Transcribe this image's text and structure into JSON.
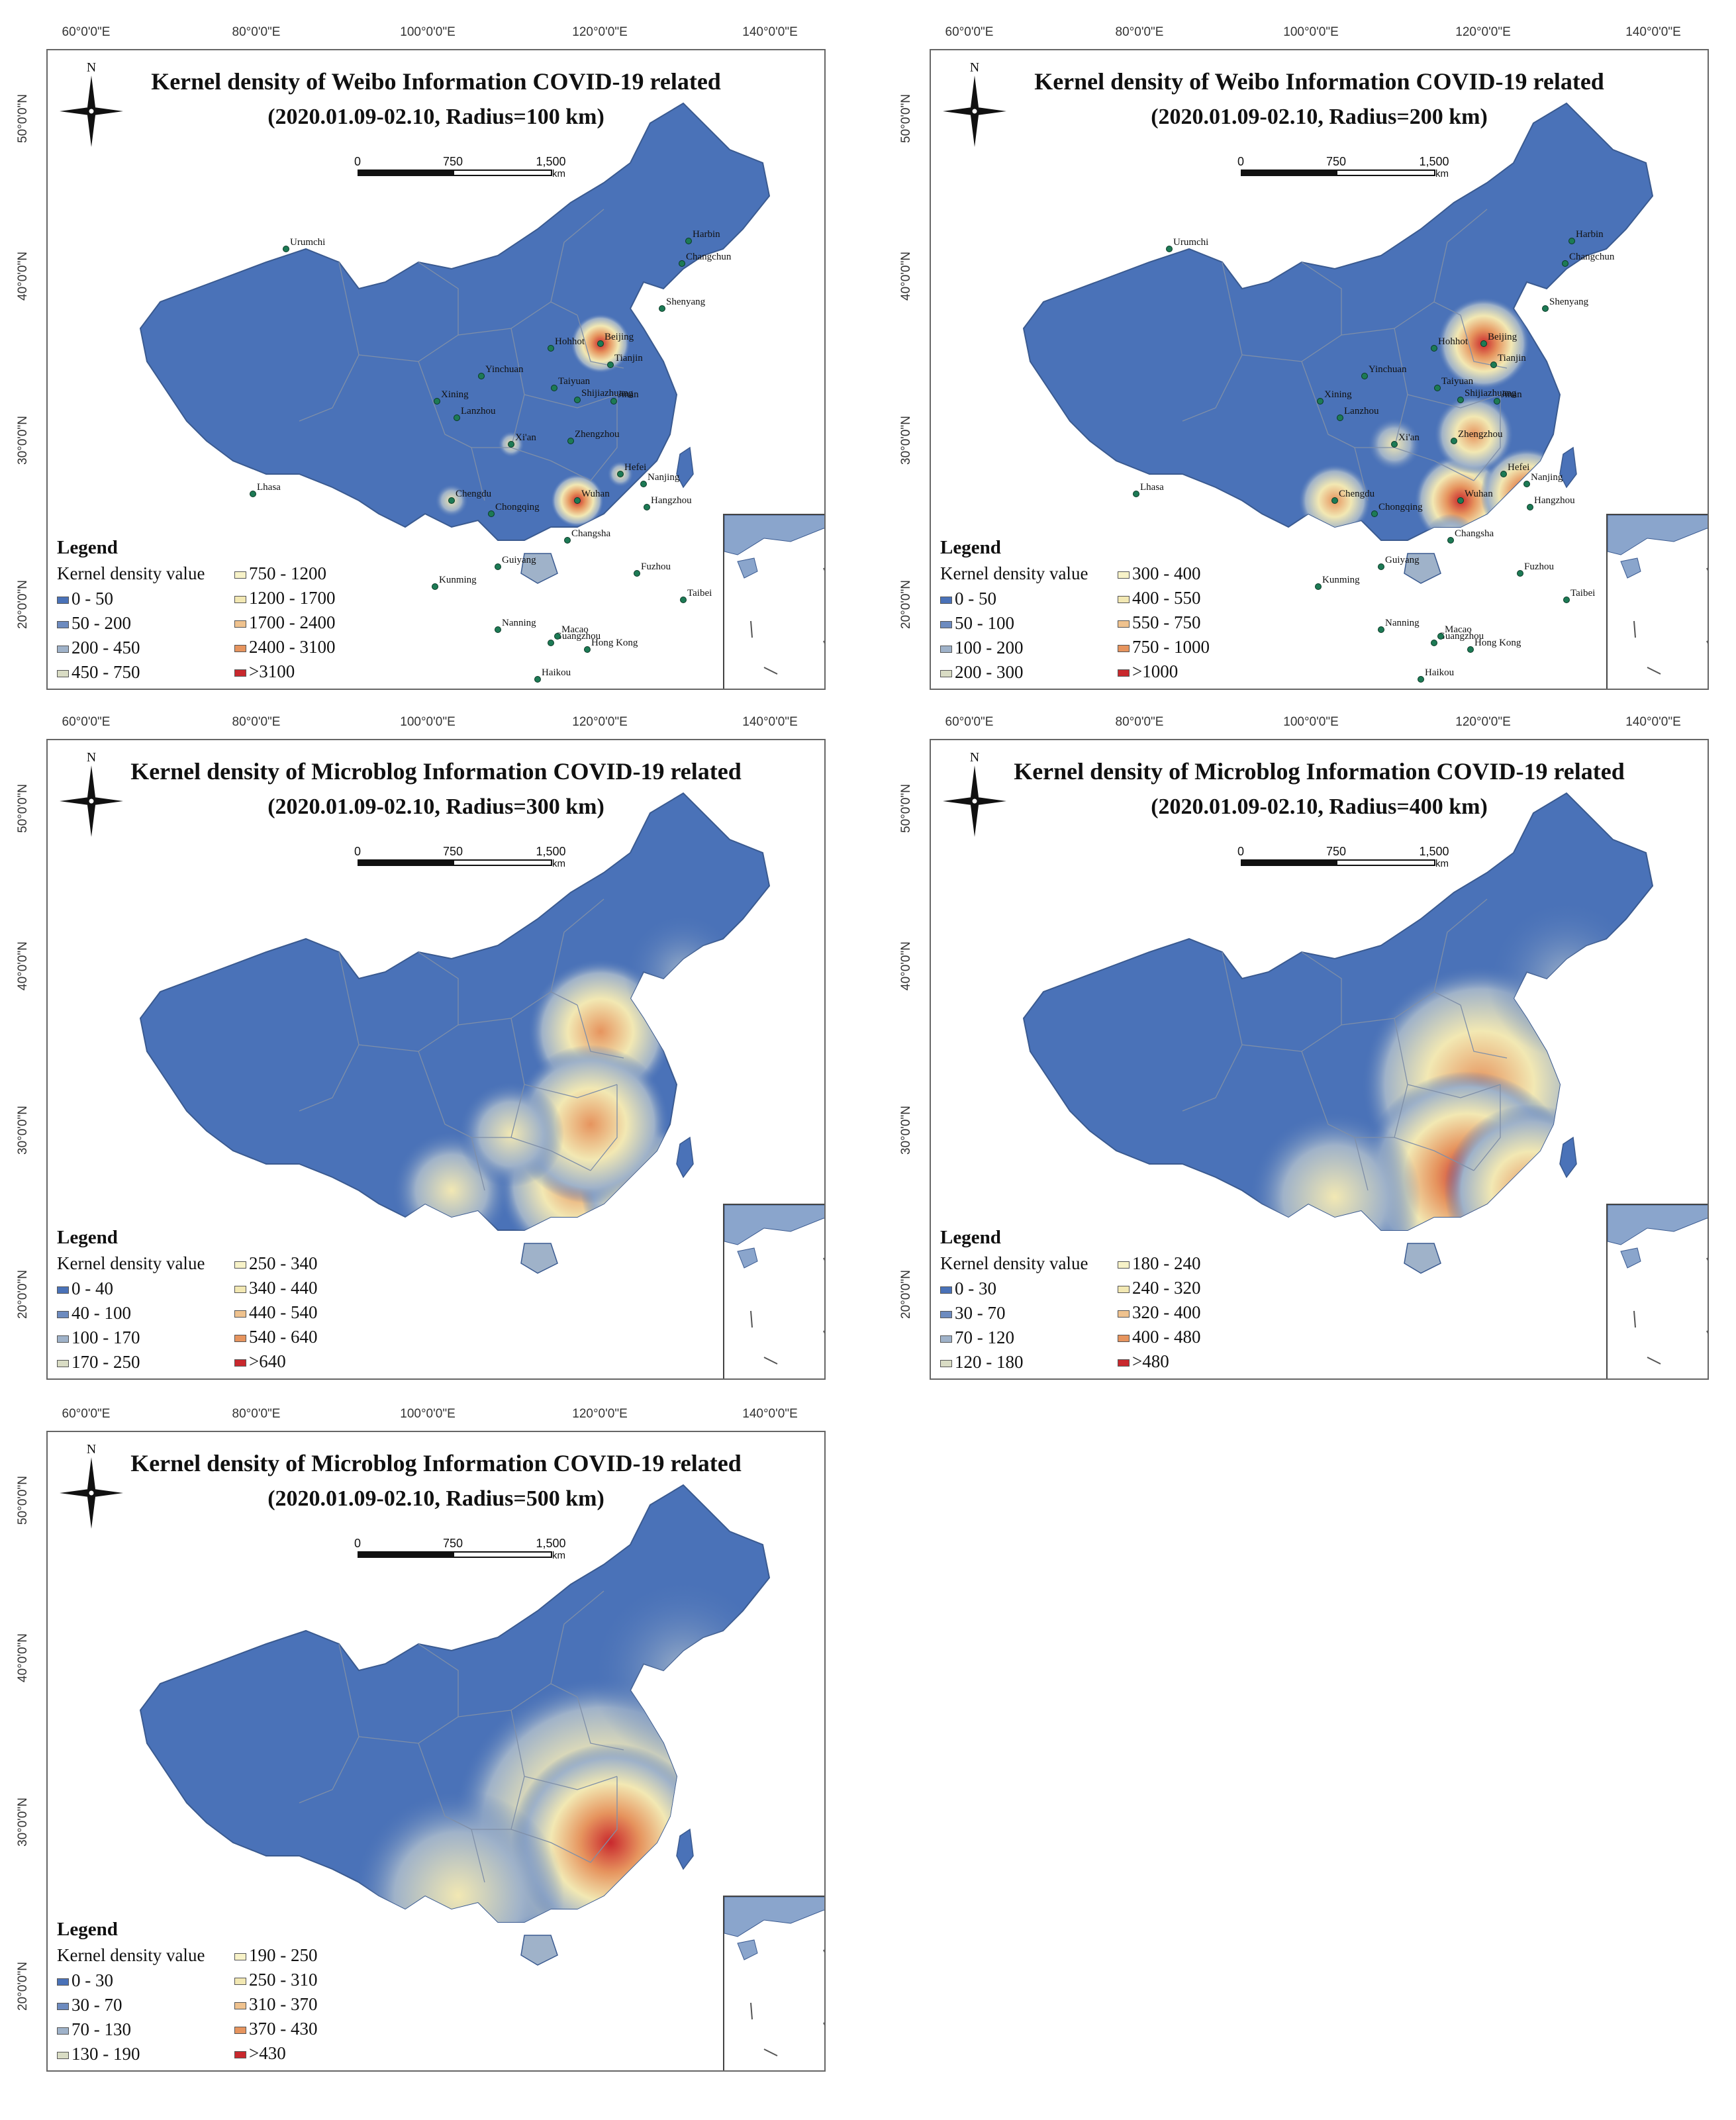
{
  "axis": {
    "lon_labels": [
      "60°0'0\"E",
      "80°0'0\"E",
      "100°0'0\"E",
      "120°0'0\"E",
      "140°0'0\"E"
    ],
    "lat_labels": [
      "50°0'0\"N",
      "40°0'0\"N",
      "30°0'0\"N",
      "20°0'0\"N"
    ]
  },
  "scale": {
    "ticks": [
      "0",
      "750",
      "1,500"
    ],
    "unit": "km"
  },
  "compass_label": "N",
  "colors": {
    "low": "#4a72b8",
    "mid_low": "#9fb2c9",
    "mid": "#f2e8b3",
    "high": "#e6945e",
    "top": "#c9282d"
  },
  "panels": [
    {
      "title": "Kernel density of Weibo Information COVID-19 related",
      "subtitle": "(2020.01.09-02.10, Radius=100 km)",
      "legend_title": "Legend",
      "legend_subtitle": "Kernel density value",
      "legend_left": [
        "0 - 50",
        "50 - 200",
        "200 - 450",
        "450 - 750"
      ],
      "legend_right": [
        "750 - 1200",
        "1200 - 1700",
        "1700 - 2400",
        "2400 - 3100",
        ">3100"
      ],
      "cities": [
        "Urumchi",
        "Harbin",
        "Changchun",
        "Shenyang",
        "Hohhot",
        "Beijing",
        "Tianjin",
        "Yinchuan",
        "Taiyuan",
        "Shijiazhuang",
        "Jinan",
        "Xining",
        "Lanzhou",
        "Xi'an",
        "Zhengzhou",
        "Hefei",
        "Nanjing",
        "Hangzhou",
        "Chengdu",
        "Chongqing",
        "Wuhan",
        "Lhasa",
        "Changsha",
        "Guiyang",
        "Kunming",
        "Fuzhou",
        "Taibei",
        "Nanning",
        "Guangzhou",
        "Macao",
        "Hong Kong",
        "Haikou"
      ]
    },
    {
      "title": "Kernel density of Weibo Information COVID-19 related",
      "subtitle": "(2020.01.09-02.10, Radius=200 km)",
      "legend_title": "Legend",
      "legend_subtitle": "Kernel density value",
      "legend_left": [
        "0 - 50",
        "50 - 100",
        "100 - 200",
        "200 - 300"
      ],
      "legend_right": [
        "300 - 400",
        "400 - 550",
        "550 - 750",
        "750 - 1000",
        ">1000"
      ],
      "cities": [
        "Urumchi",
        "Harbin",
        "Changchun",
        "Shenyang",
        "Hohhot",
        "Beijing",
        "Tianjin",
        "Yinchuan",
        "Taiyuan",
        "Shijiazhuang",
        "Jinan",
        "Xining",
        "Lanzhou",
        "Xi'an",
        "Zhengzhou",
        "Hefei",
        "Nanjing",
        "Hangzhou",
        "Chengdu",
        "Chongqing",
        "Wuhan",
        "Lhasa",
        "Changsha",
        "Guiyang",
        "Kunming",
        "Fuzhou",
        "Taibei",
        "Nanning",
        "Guangzhou",
        "Macao",
        "Hong Kong",
        "Haikou"
      ]
    },
    {
      "title": "Kernel density of Microblog Information COVID-19 related",
      "subtitle": "(2020.01.09-02.10, Radius=300 km)",
      "legend_title": "Legend",
      "legend_subtitle": "Kernel density value",
      "legend_left": [
        "0 - 40",
        "40 - 100",
        "100 - 170",
        "170 - 250"
      ],
      "legend_right": [
        "250 - 340",
        "340 - 440",
        "440 - 540",
        "540 - 640",
        ">640"
      ],
      "cities": []
    },
    {
      "title": "Kernel density of Microblog Information COVID-19 related",
      "subtitle": "(2020.01.09-02.10, Radius=400 km)",
      "legend_title": "Legend",
      "legend_subtitle": "Kernel density value",
      "legend_left": [
        "0 - 30",
        "30 - 70",
        "70 - 120",
        "120 - 180"
      ],
      "legend_right": [
        "180 - 240",
        "240 - 320",
        "320 - 400",
        "400 - 480",
        ">480"
      ],
      "cities": []
    },
    {
      "title": "Kernel density of Microblog Information COVID-19 related",
      "subtitle": "(2020.01.09-02.10, Radius=500 km)",
      "legend_title": "Legend",
      "legend_subtitle": "Kernel density value",
      "legend_left": [
        "0 - 30",
        "30 - 70",
        "70 - 130",
        "130 - 190"
      ],
      "legend_right": [
        "190 - 250",
        "250 - 310",
        "310 - 370",
        "370 - 430",
        ">430"
      ],
      "cities": []
    }
  ]
}
